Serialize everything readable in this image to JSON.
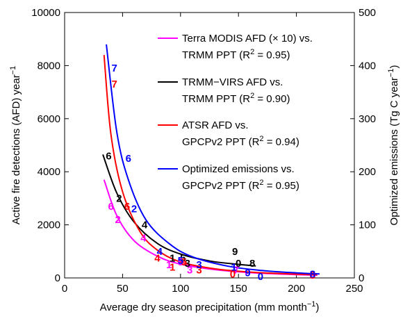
{
  "chart_data": {
    "type": "scatter",
    "xlabel_main": "Average dry season precipitation (mm month",
    "xlabel_exp": "−1",
    "xlabel_tail": ")",
    "ylabel_main": "Active fire detections (AFD) year",
    "ylabel_exp": "−1",
    "y2label_main": "Optimized emissions (Tg C year",
    "y2label_exp": "−1",
    "y2label_tail": ")",
    "xlim": [
      0,
      250
    ],
    "ylim": [
      0,
      10000
    ],
    "y2lim": [
      0,
      500
    ],
    "x_ticks": [
      "0",
      "50",
      "100",
      "150",
      "200",
      "250"
    ],
    "y_ticks": [
      "0",
      "2000",
      "4000",
      "6000",
      "8000",
      "10000"
    ],
    "y2_ticks": [
      "0",
      "100",
      "200",
      "300",
      "400",
      "500"
    ],
    "series": [
      {
        "color": "#ff00ff",
        "legend_line1": "Terra MODIS AFD (× 10) vs.",
        "legend_line2_pre": "TRMM PPT (R",
        "legend_sup": "2",
        "legend_line2_post": " = 0.95)",
        "curve": [
          [
            34,
            3700
          ],
          [
            45,
            2350
          ],
          [
            60,
            1400
          ],
          [
            80,
            820
          ],
          [
            100,
            520
          ],
          [
            130,
            310
          ],
          [
            160,
            200
          ],
          [
            190,
            140
          ],
          [
            218,
            100
          ]
        ],
        "points": [
          {
            "label": "6",
            "x": 40,
            "y": 2700
          },
          {
            "label": "2",
            "x": 46,
            "y": 2200
          },
          {
            "label": "4",
            "x": 68,
            "y": 1500
          },
          {
            "label": "1",
            "x": 90,
            "y": 500
          },
          {
            "label": "5",
            "x": 100,
            "y": 600
          },
          {
            "label": "3",
            "x": 108,
            "y": 300
          },
          {
            "label": "7",
            "x": 148,
            "y": 300
          },
          {
            "label": "0",
            "x": 158,
            "y": 200
          },
          {
            "label": "8",
            "x": 214,
            "y": 100
          }
        ]
      },
      {
        "color": "#000000",
        "legend_line1": "TRMM−VIRS AFD vs.",
        "legend_line2_pre": "TRMM PPT (R",
        "legend_sup": "2",
        "legend_line2_post": " = 0.90)",
        "curve": [
          [
            33,
            4650
          ],
          [
            45,
            3200
          ],
          [
            60,
            2100
          ],
          [
            80,
            1300
          ],
          [
            100,
            900
          ],
          [
            125,
            640
          ],
          [
            150,
            510
          ],
          [
            165,
            450
          ]
        ],
        "points": [
          {
            "label": "6",
            "x": 38,
            "y": 4600
          },
          {
            "label": "2",
            "x": 47,
            "y": 3000
          },
          {
            "label": "4",
            "x": 69,
            "y": 2000
          },
          {
            "label": "1",
            "x": 93,
            "y": 750
          },
          {
            "label": "5",
            "x": 102,
            "y": 750
          },
          {
            "label": "3",
            "x": 106,
            "y": 550
          },
          {
            "label": "9",
            "x": 147,
            "y": 1000
          },
          {
            "label": "0",
            "x": 150,
            "y": 550
          },
          {
            "label": "8",
            "x": 162,
            "y": 550
          }
        ]
      },
      {
        "color": "#ff0000",
        "legend_line1": "ATSR AFD vs.",
        "legend_line2_pre": "GPCPv2 PPT (R",
        "legend_sup": "2",
        "legend_line2_post": " = 0.94)",
        "curve": [
          [
            34,
            8400
          ],
          [
            40,
            5400
          ],
          [
            50,
            3250
          ],
          [
            65,
            1750
          ],
          [
            80,
            1050
          ],
          [
            100,
            600
          ],
          [
            130,
            340
          ],
          [
            160,
            220
          ],
          [
            190,
            160
          ],
          [
            218,
            120
          ]
        ],
        "points": [
          {
            "label": "7",
            "x": 43,
            "y": 7300
          },
          {
            "label": "6",
            "x": 54,
            "y": 2700
          },
          {
            "label": "4",
            "x": 80,
            "y": 750
          },
          {
            "label": "1",
            "x": 93,
            "y": 400
          },
          {
            "label": "5",
            "x": 103,
            "y": 600
          },
          {
            "label": "3",
            "x": 116,
            "y": 300
          },
          {
            "label": "0",
            "x": 145,
            "y": 150
          },
          {
            "label": "8",
            "x": 214,
            "y": 100
          }
        ]
      },
      {
        "color": "#0000ff",
        "legend_line1": "Optimized emissions vs.",
        "legend_line2_pre": "GPCPv2 PPT (R",
        "legend_sup": "2",
        "legend_line2_post": " = 0.95)",
        "curve": [
          [
            36,
            8800
          ],
          [
            45,
            5500
          ],
          [
            55,
            3700
          ],
          [
            70,
            2200
          ],
          [
            90,
            1300
          ],
          [
            110,
            800
          ],
          [
            140,
            450
          ],
          [
            170,
            280
          ],
          [
            200,
            190
          ],
          [
            220,
            150
          ]
        ],
        "points": [
          {
            "label": "7",
            "x": 43,
            "y": 7900
          },
          {
            "label": "6",
            "x": 55,
            "y": 4500
          },
          {
            "label": "2",
            "x": 60,
            "y": 2600
          },
          {
            "label": "4",
            "x": 82,
            "y": 1000
          },
          {
            "label": "5",
            "x": 100,
            "y": 650
          },
          {
            "label": "3",
            "x": 116,
            "y": 500
          },
          {
            "label": "1",
            "x": 146,
            "y": 400
          },
          {
            "label": "9",
            "x": 158,
            "y": 200
          },
          {
            "label": "0",
            "x": 169,
            "y": 50
          },
          {
            "label": "8",
            "x": 214,
            "y": 150
          }
        ]
      }
    ]
  }
}
